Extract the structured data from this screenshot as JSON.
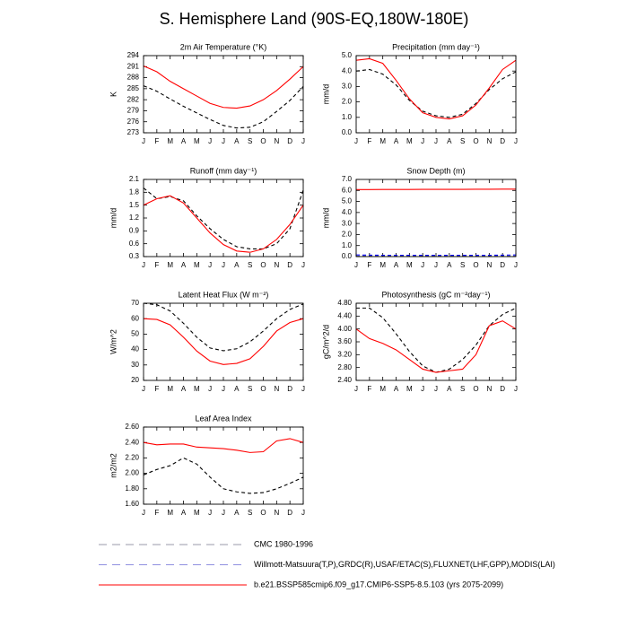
{
  "title": "S. Hemisphere Land (90S-EQ,180W-180E)",
  "legend": [
    {
      "name": "CMC 1980-1996",
      "color": "#9a9aaa",
      "dash": true
    },
    {
      "name": "Willmott-Matsuura(T,P),GRDC(R),USAF/ETAC(S),FLUXNET(LHF,GPP),MODIS(LAI)",
      "color": "#9090e0",
      "dash": true
    },
    {
      "name": "b.e21.BSSP585cmip6.f09_g17.CMIP6-SSP5-8.5.103 (yrs 2075-2099)",
      "color": "#ff0000",
      "dash": false
    }
  ],
  "chart_data": [
    {
      "type": "line",
      "title": "2m Air Temperature (°K)",
      "ylabel": "K",
      "categories": [
        "J",
        "F",
        "M",
        "A",
        "M",
        "J",
        "J",
        "A",
        "S",
        "O",
        "N",
        "D",
        "J"
      ],
      "ylim": [
        273,
        294
      ],
      "yticks": [
        273,
        276,
        279,
        282,
        285,
        288,
        291,
        294
      ],
      "series": [
        {
          "color": "#000000",
          "dash": true,
          "values": [
            285.8,
            284.3,
            282.2,
            280.2,
            278.4,
            276.6,
            275,
            274.3,
            274.5,
            276,
            278.8,
            281.8,
            285.6
          ]
        },
        {
          "color": "#ff0000",
          "dash": false,
          "values": [
            291.2,
            289.6,
            287,
            285,
            283,
            281,
            279.9,
            279.7,
            280.3,
            282,
            284.5,
            287.6,
            291
          ]
        }
      ]
    },
    {
      "type": "line",
      "title": "Precipitation (mm day⁻¹)",
      "ylabel": "mm/d",
      "categories": [
        "J",
        "F",
        "M",
        "A",
        "M",
        "J",
        "J",
        "A",
        "S",
        "O",
        "N",
        "D",
        "J"
      ],
      "ylim": [
        0,
        5
      ],
      "yticks": [
        {
          "value": 0,
          "label": "0.0"
        },
        {
          "value": 1,
          "label": "1.0"
        },
        {
          "value": 2,
          "label": "2.0"
        },
        {
          "value": 3,
          "label": "3.0"
        },
        {
          "value": 4,
          "label": "4.0"
        },
        {
          "value": 5,
          "label": "5.0"
        }
      ],
      "series": [
        {
          "color": "#000000",
          "dash": true,
          "values": [
            4.0,
            4.1,
            3.8,
            3.1,
            2.1,
            1.4,
            1.1,
            1.0,
            1.2,
            1.9,
            2.8,
            3.5,
            3.95
          ]
        },
        {
          "color": "#ff0000",
          "dash": false,
          "values": [
            4.7,
            4.8,
            4.5,
            3.4,
            2.2,
            1.3,
            1.0,
            0.9,
            1.1,
            1.8,
            2.9,
            4.1,
            4.7
          ]
        }
      ]
    },
    {
      "type": "line",
      "title": "Runoff (mm day⁻¹)",
      "ylabel": "mm/d",
      "categories": [
        "J",
        "F",
        "M",
        "A",
        "M",
        "J",
        "J",
        "A",
        "S",
        "O",
        "N",
        "D",
        "J"
      ],
      "ylim": [
        0.3,
        2.1
      ],
      "yticks": [
        0.3,
        0.6,
        0.9,
        1.2,
        1.5,
        1.8,
        2.1
      ],
      "series": [
        {
          "color": "#000000",
          "dash": true,
          "values": [
            1.9,
            1.65,
            1.7,
            1.6,
            1.25,
            0.95,
            0.7,
            0.53,
            0.48,
            0.48,
            0.6,
            0.95,
            1.85
          ]
        },
        {
          "color": "#ff0000",
          "dash": false,
          "values": [
            1.5,
            1.65,
            1.72,
            1.55,
            1.2,
            0.85,
            0.58,
            0.43,
            0.4,
            0.48,
            0.7,
            1.05,
            1.5
          ]
        }
      ]
    },
    {
      "type": "line",
      "title": "Snow Depth (m)",
      "ylabel": "mm/d",
      "categories": [
        "J",
        "F",
        "M",
        "A",
        "M",
        "J",
        "J",
        "A",
        "S",
        "O",
        "N",
        "D",
        "J"
      ],
      "ylim": [
        0,
        7
      ],
      "yticks": [
        {
          "value": 0,
          "label": "0.0"
        },
        {
          "value": 1,
          "label": "1.0"
        },
        {
          "value": 2,
          "label": "2.0"
        },
        {
          "value": 3,
          "label": "3.0"
        },
        {
          "value": 4,
          "label": "4.0"
        },
        {
          "value": 5,
          "label": "5.0"
        },
        {
          "value": 6,
          "label": "6.0"
        },
        {
          "value": 7,
          "label": "7.0"
        }
      ],
      "series": [
        {
          "color": "#0000ff",
          "dash": true,
          "values": [
            0.15,
            0.13,
            0.12,
            0.12,
            0.12,
            0.12,
            0.12,
            0.12,
            0.12,
            0.12,
            0.12,
            0.13,
            0.15
          ]
        },
        {
          "color": "#000000",
          "dash": true,
          "values": [
            0.02,
            0.02,
            0.02,
            0.02,
            0.02,
            0.02,
            0.02,
            0.02,
            0.02,
            0.02,
            0.02,
            0.02,
            0.02
          ]
        },
        {
          "color": "#ff0000",
          "dash": false,
          "values": [
            6.08,
            6.08,
            6.09,
            6.09,
            6.09,
            6.1,
            6.1,
            6.1,
            6.1,
            6.11,
            6.11,
            6.12,
            6.12
          ]
        }
      ]
    },
    {
      "type": "line",
      "title": "Latent Heat Flux (W m⁻²)",
      "ylabel": "W/m^2",
      "categories": [
        "J",
        "F",
        "M",
        "A",
        "M",
        "J",
        "J",
        "A",
        "S",
        "O",
        "N",
        "D",
        "J"
      ],
      "ylim": [
        20,
        70
      ],
      "yticks": [
        20,
        30,
        40,
        50,
        60,
        70
      ],
      "series": [
        {
          "color": "#000000",
          "dash": true,
          "values": [
            70,
            69,
            65,
            57,
            48,
            41,
            39.2,
            40.5,
            45,
            52,
            60,
            66,
            69.5
          ]
        },
        {
          "color": "#ff0000",
          "dash": false,
          "values": [
            60,
            59.5,
            56,
            48,
            39,
            32.5,
            30.3,
            31,
            34,
            42,
            52,
            57.5,
            60
          ]
        }
      ]
    },
    {
      "type": "line",
      "title": "Photosynthesis (gC m⁻²day⁻¹)",
      "ylabel": "gC/m^2/d",
      "categories": [
        "J",
        "F",
        "M",
        "A",
        "M",
        "J",
        "J",
        "A",
        "S",
        "O",
        "N",
        "D",
        "J"
      ],
      "ylim": [
        2.4,
        4.8
      ],
      "yticks": [
        {
          "value": 2.4,
          "label": "2.40"
        },
        {
          "value": 2.8,
          "label": "2.80"
        },
        {
          "value": 3.2,
          "label": "3.20"
        },
        {
          "value": 3.6,
          "label": "3.60"
        },
        {
          "value": 4,
          "label": "4.00"
        },
        {
          "value": 4.4,
          "label": "4.40"
        },
        {
          "value": 4.8,
          "label": "4.80"
        }
      ],
      "series": [
        {
          "color": "#000000",
          "dash": true,
          "values": [
            4.65,
            4.65,
            4.35,
            3.85,
            3.3,
            2.85,
            2.65,
            2.75,
            3.05,
            3.5,
            4.1,
            4.45,
            4.65
          ]
        },
        {
          "color": "#ff0000",
          "dash": false,
          "values": [
            4.0,
            3.7,
            3.55,
            3.35,
            3.05,
            2.75,
            2.65,
            2.7,
            2.75,
            3.2,
            4.1,
            4.25,
            4.0
          ]
        }
      ]
    },
    {
      "type": "line",
      "title": "Leaf Area Index",
      "ylabel": "m2/m2",
      "categories": [
        "J",
        "F",
        "M",
        "A",
        "M",
        "J",
        "J",
        "A",
        "S",
        "O",
        "N",
        "D",
        "J"
      ],
      "ylim": [
        1.6,
        2.6
      ],
      "yticks": [
        {
          "value": 1.6,
          "label": "1.60"
        },
        {
          "value": 1.8,
          "label": "1.80"
        },
        {
          "value": 2,
          "label": "2.00"
        },
        {
          "value": 2.2,
          "label": "2.20"
        },
        {
          "value": 2.4,
          "label": "2.40"
        },
        {
          "value": 2.6,
          "label": "2.60"
        }
      ],
      "series": [
        {
          "color": "#000000",
          "dash": true,
          "values": [
            1.98,
            2.05,
            2.1,
            2.2,
            2.12,
            1.95,
            1.8,
            1.76,
            1.74,
            1.75,
            1.8,
            1.87,
            1.95
          ]
        },
        {
          "color": "#ff0000",
          "dash": false,
          "values": [
            2.4,
            2.37,
            2.38,
            2.38,
            2.34,
            2.33,
            2.32,
            2.3,
            2.27,
            2.28,
            2.42,
            2.45,
            2.4
          ]
        }
      ]
    }
  ]
}
